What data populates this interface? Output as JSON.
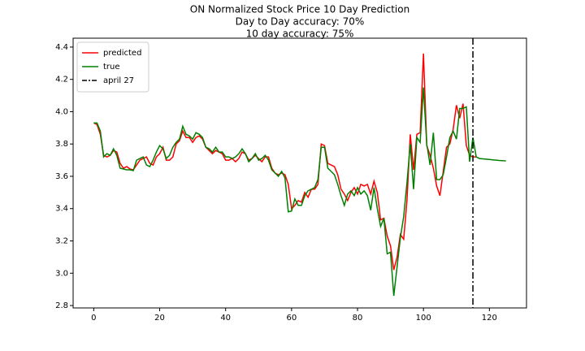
{
  "chart_data": {
    "type": "line",
    "title": "ON Normalized Stock Price 10 Day Prediction",
    "subtitle": [
      "Day to Day accuracy: 70%",
      "10 day accuracy: 75%"
    ],
    "x": [
      0,
      1,
      2,
      3,
      4,
      5,
      6,
      7,
      8,
      9,
      10,
      11,
      12,
      13,
      14,
      15,
      16,
      17,
      18,
      19,
      20,
      21,
      22,
      23,
      24,
      25,
      26,
      27,
      28,
      29,
      30,
      31,
      32,
      33,
      34,
      35,
      36,
      37,
      38,
      39,
      40,
      41,
      42,
      43,
      44,
      45,
      46,
      47,
      48,
      49,
      50,
      51,
      52,
      53,
      54,
      55,
      56,
      57,
      58,
      59,
      60,
      61,
      62,
      63,
      64,
      65,
      66,
      67,
      68,
      69,
      70,
      71,
      72,
      73,
      74,
      75,
      76,
      77,
      78,
      79,
      80,
      81,
      82,
      83,
      84,
      85,
      86,
      87,
      88,
      89,
      90,
      91,
      92,
      93,
      94,
      95,
      96,
      97,
      98,
      99,
      100,
      101,
      102,
      103,
      104,
      105,
      106,
      107,
      108,
      109,
      110,
      111,
      112,
      113,
      114,
      115,
      116,
      117,
      118,
      119,
      120,
      121,
      122,
      123,
      124,
      125
    ],
    "series": [
      {
        "name": "predicted",
        "color": "#ff0000",
        "values": [
          3.93,
          3.92,
          3.86,
          3.73,
          3.72,
          3.73,
          3.76,
          3.75,
          3.68,
          3.65,
          3.66,
          3.645,
          3.64,
          3.67,
          3.7,
          3.71,
          3.72,
          3.68,
          3.67,
          3.72,
          3.74,
          3.78,
          3.7,
          3.7,
          3.72,
          3.8,
          3.82,
          3.88,
          3.84,
          3.84,
          3.81,
          3.84,
          3.85,
          3.83,
          3.78,
          3.76,
          3.74,
          3.76,
          3.75,
          3.74,
          3.7,
          3.7,
          3.71,
          3.69,
          3.71,
          3.75,
          3.74,
          3.7,
          3.71,
          3.73,
          3.71,
          3.69,
          3.72,
          3.72,
          3.65,
          3.62,
          3.61,
          3.62,
          3.61,
          3.55,
          3.4,
          3.42,
          3.45,
          3.44,
          3.5,
          3.47,
          3.52,
          3.52,
          3.55,
          3.8,
          3.79,
          3.68,
          3.67,
          3.66,
          3.61,
          3.52,
          3.49,
          3.45,
          3.5,
          3.53,
          3.49,
          3.55,
          3.54,
          3.55,
          3.49,
          3.57,
          3.5,
          3.33,
          3.34,
          3.23,
          3.17,
          3.02,
          3.1,
          3.24,
          3.21,
          3.45,
          3.86,
          3.64,
          3.86,
          3.87,
          4.36,
          3.79,
          3.73,
          3.65,
          3.54,
          3.48,
          3.63,
          3.78,
          3.8,
          3.89,
          4.04,
          3.96,
          4.05,
          3.79,
          3.73,
          3.72,
          3.72,
          null,
          null,
          null,
          null,
          null,
          null,
          null,
          null,
          null
        ]
      },
      {
        "name": "true",
        "color": "#008000",
        "values": [
          3.93,
          3.93,
          3.88,
          3.72,
          3.74,
          3.73,
          3.77,
          3.73,
          3.65,
          3.645,
          3.64,
          3.64,
          3.635,
          3.7,
          3.71,
          3.72,
          3.67,
          3.66,
          3.7,
          3.75,
          3.79,
          3.77,
          3.71,
          3.73,
          3.78,
          3.81,
          3.83,
          3.91,
          3.86,
          3.85,
          3.83,
          3.87,
          3.86,
          3.84,
          3.78,
          3.77,
          3.75,
          3.78,
          3.75,
          3.75,
          3.72,
          3.72,
          3.71,
          3.72,
          3.74,
          3.77,
          3.74,
          3.69,
          3.71,
          3.74,
          3.7,
          3.71,
          3.73,
          3.7,
          3.64,
          3.62,
          3.6,
          3.63,
          3.59,
          3.38,
          3.385,
          3.46,
          3.42,
          3.42,
          3.48,
          3.51,
          3.52,
          3.53,
          3.58,
          3.78,
          3.78,
          3.65,
          3.63,
          3.61,
          3.55,
          3.48,
          3.42,
          3.49,
          3.51,
          3.48,
          3.53,
          3.49,
          3.51,
          3.48,
          3.39,
          3.53,
          3.4,
          3.29,
          3.34,
          3.12,
          3.13,
          2.86,
          3.04,
          3.22,
          3.35,
          3.56,
          3.8,
          3.52,
          3.84,
          3.81,
          4.15,
          3.8,
          3.67,
          3.87,
          3.58,
          3.58,
          3.61,
          3.72,
          3.84,
          3.88,
          3.83,
          4.02,
          4.02,
          4.03,
          3.69,
          3.84,
          3.72,
          3.71,
          3.708,
          3.706,
          3.704,
          3.702,
          3.7,
          3.698,
          3.697,
          3.695
        ]
      }
    ],
    "vline": {
      "name": "april 27",
      "x": 115,
      "color": "#000000"
    },
    "xlim": [
      -6.25,
      131.25
    ],
    "ylim": [
      2.785,
      4.455
    ],
    "xticks": [
      0,
      20,
      40,
      60,
      80,
      100,
      120
    ],
    "yticks": [
      2.8,
      {
        "value": 3,
        "label": "3.0"
      },
      3.2,
      3.4,
      3.6,
      3.8,
      {
        "value": 4,
        "label": "4.0"
      },
      4.2,
      4.4
    ],
    "legend": "upper left"
  }
}
